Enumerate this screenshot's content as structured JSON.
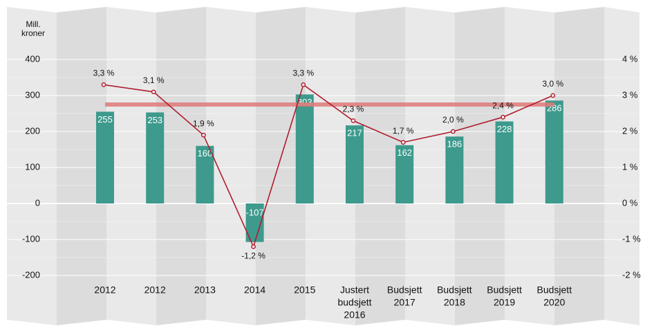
{
  "chart_data": {
    "type": "bar",
    "y_label": [
      "Mill.",
      "kroner"
    ],
    "categories": [
      [
        "2012"
      ],
      [
        "2012"
      ],
      [
        "2013"
      ],
      [
        "2014"
      ],
      [
        "2015"
      ],
      [
        "Justert",
        "budsjett",
        "2016"
      ],
      [
        "Budsjett",
        "2017"
      ],
      [
        "Budsjett",
        "2018"
      ],
      [
        "Budsjett",
        "2019"
      ],
      [
        "Budsjett",
        "2020"
      ]
    ],
    "series": [
      {
        "type": "bar",
        "color": "#3d9a8d",
        "values": [
          255,
          253,
          160,
          -107,
          303,
          217,
          162,
          186,
          228,
          286
        ]
      },
      {
        "type": "line",
        "axis": "y2",
        "color": "#b01c2e",
        "values": [
          3.3,
          3.1,
          1.9,
          -1.2,
          3.3,
          2.3,
          1.7,
          2.0,
          2.4,
          3.0
        ],
        "value_labels": [
          "3,3 %",
          "3,1 %",
          "1,9 %",
          "-1,2 %",
          "3,3 %",
          "2,3 %",
          "1,7 %",
          "2,0 %",
          "2,4 %",
          "3,0 %"
        ]
      }
    ],
    "reference_line": {
      "value": 275,
      "color": "#e07a7a"
    },
    "ylim": [
      -200,
      400
    ],
    "yticks": [
      -200,
      -100,
      0,
      100,
      200,
      300,
      400
    ],
    "y2lim": [
      -2,
      4
    ],
    "y2ticks": [
      {
        "value": -2,
        "label": "-2 %"
      },
      {
        "value": -1,
        "label": "-1 %"
      },
      {
        "value": 0,
        "label": "0 %"
      },
      {
        "value": 1,
        "label": "1 %"
      },
      {
        "value": 2,
        "label": "2 %"
      },
      {
        "value": 3,
        "label": "3 %"
      },
      {
        "value": 4,
        "label": "4 %"
      }
    ],
    "grid": true
  }
}
